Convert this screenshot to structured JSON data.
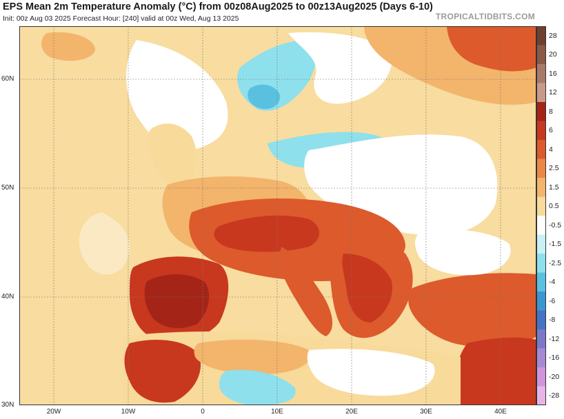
{
  "header": {
    "title": "EPS Mean 2m Temperature Anomaly (°C) from 00z08Aug2025 to 00z13Aug2025 (Days 6-10)",
    "subtitle": "Init: 00z Aug 03 2025   Forecast Hour: [240]   valid at 00z Wed, Aug 13 2025",
    "brand": "TROPICALTIDBITS.COM"
  },
  "axes": {
    "lat_labels": [
      "60N",
      "50N",
      "40N",
      "30N"
    ],
    "lon_labels": [
      "20W",
      "10W",
      "0",
      "10E",
      "20E",
      "30E",
      "40E"
    ]
  },
  "colorbar": {
    "labels": [
      "28",
      "20",
      "16",
      "12",
      "8",
      "6",
      "4",
      "2.5",
      "1.5",
      "0.5",
      "-0.5",
      "-1.5",
      "-2.5",
      "-4",
      "-6",
      "-8",
      "-12",
      "-16",
      "-20",
      "-28"
    ],
    "colors": [
      "#6e4030",
      "#8a5a46",
      "#a87a68",
      "#c89a8a",
      "#a52418",
      "#c8381e",
      "#dc5a2c",
      "#ea8846",
      "#f3b46c",
      "#f8da9a",
      "#ffffff",
      "#c8f0f6",
      "#8ee0ec",
      "#5ac0e0",
      "#3c96d2",
      "#4474c6",
      "#7c78c8",
      "#a888d2",
      "#d094dc",
      "#e8b4e8"
    ]
  },
  "colors": {
    "ocean": "#f8dca0",
    "neutral": "#ffffff",
    "warm": "#f3b46c",
    "hot": "#dc5a2c",
    "very_hot": "#c8381e",
    "cool": "#8ee0ec"
  }
}
